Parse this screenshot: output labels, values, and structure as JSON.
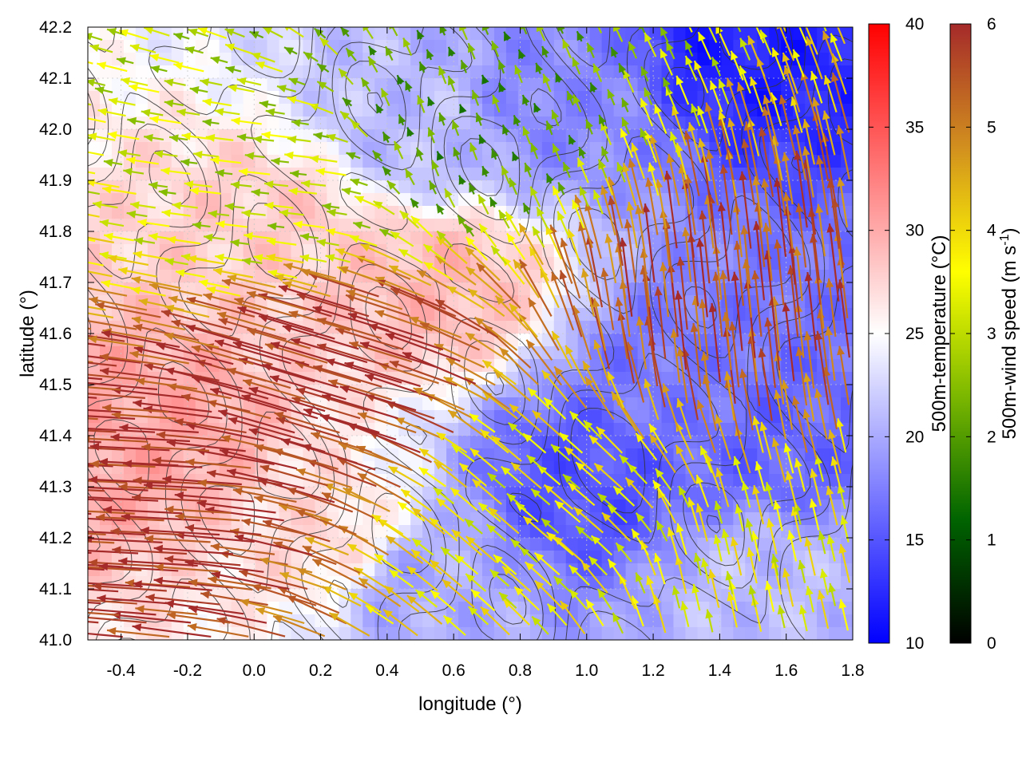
{
  "chart_data": {
    "type": "heatmap",
    "overlays": [
      "vector-field",
      "contour"
    ],
    "xlabel": "longitude (°)",
    "ylabel": "latitude (°)",
    "xlim": [
      -0.5,
      1.8
    ],
    "ylim": [
      41.0,
      42.2
    ],
    "xticks": [
      "-0.4",
      "-0.2",
      "0.0",
      "0.2",
      "0.4",
      "0.6",
      "0.8",
      "1.0",
      "1.2",
      "1.4",
      "1.6",
      "1.8"
    ],
    "xtick_values": [
      -0.4,
      -0.2,
      0.0,
      0.2,
      0.4,
      0.6,
      0.8,
      1.0,
      1.2,
      1.4,
      1.6,
      1.8
    ],
    "yticks": [
      "41.0",
      "41.1",
      "41.2",
      "41.3",
      "41.4",
      "41.5",
      "41.6",
      "41.7",
      "41.8",
      "41.9",
      "42.0",
      "42.1",
      "42.2"
    ],
    "ytick_values": [
      41.0,
      41.1,
      41.2,
      41.3,
      41.4,
      41.5,
      41.6,
      41.7,
      41.8,
      41.9,
      42.0,
      42.1,
      42.2
    ],
    "grid": true,
    "temperature_colorbar": {
      "label": "500m-temperature (°C)",
      "range": [
        10,
        40
      ],
      "ticks": [
        "10",
        "15",
        "20",
        "25",
        "30",
        "35",
        "40"
      ],
      "tick_values": [
        10,
        15,
        20,
        25,
        30,
        35,
        40
      ],
      "colors": [
        "#0000ff",
        "#ffffff",
        "#ff0000"
      ]
    },
    "wind_colorbar": {
      "label_main": "500m-wind speed (m s",
      "label_sup": "-1",
      "label_end": ")",
      "range": [
        0,
        6
      ],
      "ticks": [
        "0",
        "1",
        "2",
        "3",
        "4",
        "5",
        "6"
      ],
      "tick_values": [
        0,
        1,
        2,
        3,
        4,
        5,
        6
      ],
      "colors": [
        "#000000",
        "#006400",
        "#7cb800",
        "#ffff00",
        "#d2901e",
        "#a52a2a"
      ]
    },
    "temperature_regions": [
      {
        "lon": -0.3,
        "lat": 41.4,
        "t": 30
      },
      {
        "lon": 0.1,
        "lat": 41.8,
        "t": 28
      },
      {
        "lon": 0.55,
        "lat": 41.7,
        "t": 29
      },
      {
        "lon": 0.5,
        "lat": 42.0,
        "t": 21
      },
      {
        "lon": 0.9,
        "lat": 42.05,
        "t": 18
      },
      {
        "lon": 1.5,
        "lat": 42.17,
        "t": 12
      },
      {
        "lon": 1.3,
        "lat": 41.5,
        "t": 17
      },
      {
        "lon": 1.55,
        "lat": 41.4,
        "t": 16
      },
      {
        "lon": 0.5,
        "lat": 41.1,
        "t": 20
      },
      {
        "lon": 1.0,
        "lat": 41.3,
        "t": 15
      },
      {
        "lon": 1.5,
        "lat": 41.1,
        "t": 21
      },
      {
        "lon": 0.2,
        "lat": 41.2,
        "t": 27
      }
    ],
    "wind_regions": [
      {
        "lon": -0.3,
        "lat": 41.3,
        "speed": 6,
        "dir": [
          -1.0,
          0.05
        ]
      },
      {
        "lon": 0.3,
        "lat": 41.5,
        "speed": 6,
        "dir": [
          -1.0,
          0.3
        ]
      },
      {
        "lon": 0.1,
        "lat": 41.9,
        "speed": 3,
        "dir": [
          -0.9,
          0.1
        ]
      },
      {
        "lon": 0.6,
        "lat": 42.0,
        "speed": 2,
        "dir": [
          -0.3,
          0.8
        ]
      },
      {
        "lon": 1.4,
        "lat": 41.6,
        "speed": 5.5,
        "dir": [
          -0.1,
          1.0
        ]
      },
      {
        "lon": 1.5,
        "lat": 41.1,
        "speed": 3.5,
        "dir": [
          -0.2,
          0.9
        ]
      },
      {
        "lon": 0.9,
        "lat": 41.25,
        "speed": 3.5,
        "dir": [
          -0.7,
          0.6
        ]
      }
    ]
  }
}
